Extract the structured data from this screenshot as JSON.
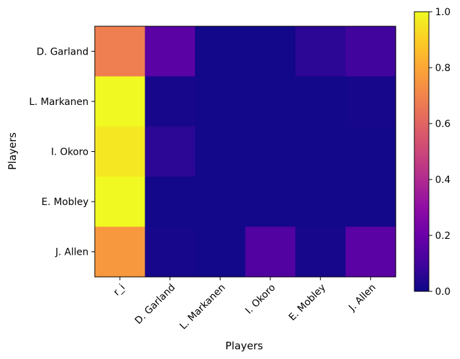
{
  "chart_data": {
    "type": "heatmap",
    "title": "",
    "xlabel": "Players",
    "ylabel": "Players",
    "x_categories": [
      "r_i",
      "D. Garland",
      "L. Markanen",
      "I. Okoro",
      "E. Mobley",
      "J. Allen"
    ],
    "y_categories": [
      "D. Garland",
      "L. Markanen",
      "I. Okoro",
      "E. Mobley",
      "J. Allen"
    ],
    "values": [
      [
        0.68,
        0.16,
        0.01,
        0.01,
        0.06,
        0.1
      ],
      [
        1.0,
        0.02,
        0.01,
        0.01,
        0.01,
        0.02
      ],
      [
        0.96,
        0.06,
        0.01,
        0.01,
        0.01,
        0.01
      ],
      [
        1.0,
        0.01,
        0.01,
        0.01,
        0.01,
        0.01
      ],
      [
        0.76,
        0.02,
        0.01,
        0.14,
        0.02,
        0.16
      ]
    ],
    "colormap": "plasma",
    "vmin": 0.0,
    "vmax": 1.0,
    "colorbar_ticks": [
      "0.0",
      "0.2",
      "0.4",
      "0.6",
      "0.8",
      "1.0"
    ],
    "colorbar_tick_values": [
      0.0,
      0.2,
      0.4,
      0.6,
      0.8,
      1.0
    ],
    "grid": false
  }
}
